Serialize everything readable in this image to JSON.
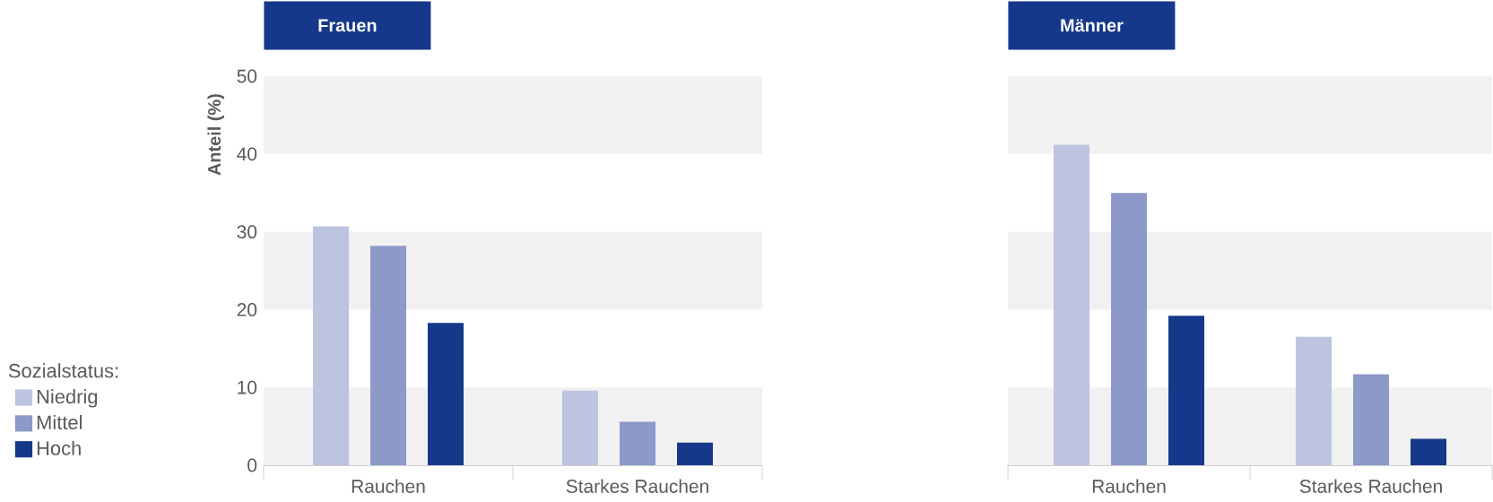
{
  "chart_data": [
    {
      "type": "bar",
      "title": "Frauen",
      "ylabel": "Anteil (%)",
      "legend_title": "Sozialstatus:",
      "legend": "left",
      "categories": [
        "Rauchen",
        "Starkes Rauchen"
      ],
      "ylim": [
        0,
        50
      ],
      "yticks": [
        0,
        10,
        20,
        30,
        40,
        50
      ],
      "bands": [
        {
          "axis": "y",
          "from": 0,
          "to": 10,
          "color": "#f1f1f1"
        },
        {
          "axis": "y",
          "from": 20,
          "to": 30,
          "color": "#f1f1f1"
        },
        {
          "axis": "y",
          "from": 40,
          "to": 50,
          "color": "#f1f1f1"
        }
      ],
      "series": [
        {
          "name": "Niedrig",
          "color": "#bcc4e0",
          "values": [
            30.7,
            9.6
          ]
        },
        {
          "name": "Mittel",
          "color": "#8d99c9",
          "values": [
            28.2,
            5.6
          ]
        },
        {
          "name": "Hoch",
          "color": "#16388a",
          "values": [
            18.3,
            2.9
          ]
        }
      ]
    },
    {
      "type": "bar",
      "title": "Männer",
      "tick_labels": "x",
      "categories": [
        "Rauchen",
        "Starkes Rauchen"
      ],
      "ylim": [
        0,
        50
      ],
      "yticks": [
        0,
        10,
        20,
        30,
        40,
        50
      ],
      "bands": [
        {
          "axis": "y",
          "from": 0,
          "to": 10,
          "color": "#f1f1f1"
        },
        {
          "axis": "y",
          "from": 20,
          "to": 30,
          "color": "#f1f1f1"
        },
        {
          "axis": "y",
          "from": 40,
          "to": 50,
          "color": "#f1f1f1"
        }
      ],
      "series": [
        {
          "color": "#bcc4e0",
          "values": [
            41.2,
            16.5
          ]
        },
        {
          "color": "#8d99c9",
          "values": [
            35.0,
            11.7
          ]
        },
        {
          "color": "#16388a",
          "values": [
            19.2,
            3.4
          ]
        }
      ]
    }
  ]
}
